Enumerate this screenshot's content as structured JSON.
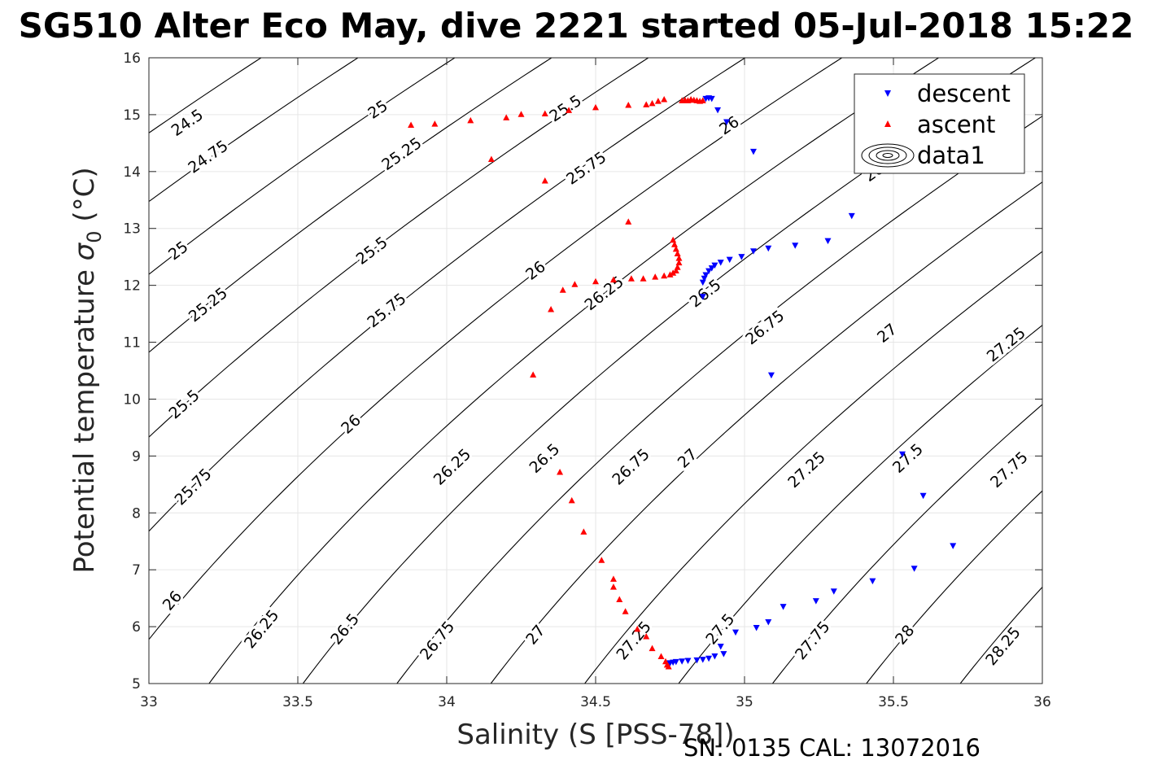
{
  "chart_data": {
    "type": "scatter",
    "title": "SG510 Alter Eco May, dive 2221 started 05-Jul-2018 15:22",
    "xlabel": "Salinity (S [PSS-78])",
    "ylabel_main": "Potential temperature ",
    "ylabel_sigma": "σ",
    "ylabel_sub": "0",
    "ylabel_unit": " (°C)",
    "footer": "SN: 0135  CAL: 13072016",
    "xlim": [
      33,
      36
    ],
    "ylim": [
      5,
      16
    ],
    "xticks": [
      "33",
      "33.5",
      "34",
      "34.5",
      "35",
      "35.5",
      "36"
    ],
    "yticks": [
      "5",
      "6",
      "7",
      "8",
      "9",
      "10",
      "11",
      "12",
      "13",
      "14",
      "15",
      "16"
    ],
    "grid": true,
    "legend": {
      "placement": "top-right",
      "entries": [
        "descent",
        "ascent",
        "data1"
      ]
    },
    "series": [
      {
        "name": "descent",
        "marker": "triangle-down",
        "color": "#0000ff",
        "points": [
          [
            34.87,
            15.28
          ],
          [
            34.88,
            15.29
          ],
          [
            34.89,
            15.28
          ],
          [
            34.91,
            15.08
          ],
          [
            34.94,
            14.87
          ],
          [
            35.03,
            14.35
          ],
          [
            34.86,
            11.8
          ],
          [
            34.86,
            12.05
          ],
          [
            34.865,
            12.12
          ],
          [
            34.87,
            12.18
          ],
          [
            34.88,
            12.25
          ],
          [
            34.89,
            12.3
          ],
          [
            34.9,
            12.35
          ],
          [
            34.92,
            12.4
          ],
          [
            34.95,
            12.45
          ],
          [
            34.99,
            12.5
          ],
          [
            35.03,
            12.6
          ],
          [
            35.08,
            12.65
          ],
          [
            35.17,
            12.7
          ],
          [
            35.28,
            12.78
          ],
          [
            35.36,
            13.22
          ],
          [
            35.09,
            10.42
          ],
          [
            35.53,
            9.03
          ],
          [
            35.6,
            8.3
          ],
          [
            35.7,
            7.42
          ],
          [
            35.57,
            7.02
          ],
          [
            35.43,
            6.8
          ],
          [
            35.3,
            6.62
          ],
          [
            35.24,
            6.45
          ],
          [
            35.13,
            6.35
          ],
          [
            35.08,
            6.08
          ],
          [
            35.04,
            5.98
          ],
          [
            34.97,
            5.9
          ],
          [
            34.92,
            5.65
          ],
          [
            34.93,
            5.52
          ],
          [
            34.9,
            5.48
          ],
          [
            34.88,
            5.44
          ],
          [
            34.86,
            5.42
          ],
          [
            34.84,
            5.41
          ],
          [
            34.81,
            5.4
          ],
          [
            34.79,
            5.39
          ],
          [
            34.77,
            5.38
          ],
          [
            34.76,
            5.37
          ],
          [
            34.75,
            5.36
          ],
          [
            34.745,
            5.35
          ]
        ]
      },
      {
        "name": "ascent",
        "marker": "triangle-up",
        "color": "#ff0000",
        "points": [
          [
            33.88,
            14.82
          ],
          [
            33.96,
            14.84
          ],
          [
            34.08,
            14.9
          ],
          [
            34.2,
            14.95
          ],
          [
            34.25,
            15.01
          ],
          [
            34.33,
            15.02
          ],
          [
            34.41,
            15.08
          ],
          [
            34.5,
            15.13
          ],
          [
            34.61,
            15.17
          ],
          [
            34.67,
            15.18
          ],
          [
            34.69,
            15.2
          ],
          [
            34.71,
            15.24
          ],
          [
            34.73,
            15.27
          ],
          [
            34.79,
            15.25
          ],
          [
            34.8,
            15.26
          ],
          [
            34.81,
            15.25
          ],
          [
            34.82,
            15.27
          ],
          [
            34.83,
            15.26
          ],
          [
            34.84,
            15.25
          ],
          [
            34.85,
            15.24
          ],
          [
            34.86,
            15.25
          ],
          [
            34.15,
            14.22
          ],
          [
            34.33,
            13.84
          ],
          [
            34.61,
            13.12
          ],
          [
            34.29,
            10.43
          ],
          [
            34.35,
            11.58
          ],
          [
            34.39,
            11.92
          ],
          [
            34.43,
            12.02
          ],
          [
            34.5,
            12.07
          ],
          [
            34.56,
            12.1
          ],
          [
            34.62,
            12.12
          ],
          [
            34.66,
            12.12
          ],
          [
            34.7,
            12.15
          ],
          [
            34.73,
            12.17
          ],
          [
            34.75,
            12.19
          ],
          [
            34.76,
            12.22
          ],
          [
            34.77,
            12.26
          ],
          [
            34.775,
            12.32
          ],
          [
            34.78,
            12.4
          ],
          [
            34.78,
            12.48
          ],
          [
            34.775,
            12.56
          ],
          [
            34.77,
            12.64
          ],
          [
            34.765,
            12.72
          ],
          [
            34.76,
            12.8
          ],
          [
            34.38,
            8.72
          ],
          [
            34.42,
            8.22
          ],
          [
            34.46,
            7.67
          ],
          [
            34.52,
            7.17
          ],
          [
            34.56,
            6.84
          ],
          [
            34.56,
            6.7
          ],
          [
            34.58,
            6.48
          ],
          [
            34.6,
            6.27
          ],
          [
            34.64,
            5.96
          ],
          [
            34.67,
            5.83
          ],
          [
            34.69,
            5.62
          ],
          [
            34.72,
            5.48
          ],
          [
            34.735,
            5.39
          ],
          [
            34.74,
            5.33
          ],
          [
            34.745,
            5.3
          ]
        ]
      }
    ],
    "contours": {
      "name": "data1",
      "quantity": "sigma0",
      "levels": [
        24.5,
        24.75,
        25,
        25.25,
        25.5,
        25.75,
        26,
        26.25,
        26.5,
        26.75,
        27,
        27.25,
        27.5,
        27.75,
        28,
        28.25
      ],
      "labels": [
        {
          "text": "24.5",
          "s": 33.13,
          "t": 14.85
        },
        {
          "text": "25",
          "s": 33.77,
          "t": 15.08
        },
        {
          "text": "25.5",
          "s": 34.4,
          "t": 15.1
        },
        {
          "text": "26",
          "s": 34.95,
          "t": 14.8
        },
        {
          "text": "26.25",
          "s": 35.47,
          "t": 14.1
        },
        {
          "text": "24.75",
          "s": 33.2,
          "t": 14.25
        },
        {
          "text": "25.25",
          "s": 33.85,
          "t": 14.3
        },
        {
          "text": "25.75",
          "s": 34.47,
          "t": 14.05
        },
        {
          "text": "25",
          "s": 33.1,
          "t": 12.6
        },
        {
          "text": "25.5",
          "s": 33.75,
          "t": 12.6
        },
        {
          "text": "26",
          "s": 34.3,
          "t": 12.25
        },
        {
          "text": "26.5",
          "s": 34.87,
          "t": 11.85
        },
        {
          "text": "25.25",
          "s": 33.2,
          "t": 11.65
        },
        {
          "text": "25.75",
          "s": 33.8,
          "t": 11.55
        },
        {
          "text": "26.25",
          "s": 34.53,
          "t": 11.85
        },
        {
          "text": "26.75",
          "s": 35.07,
          "t": 11.25
        },
        {
          "text": "27",
          "s": 35.48,
          "t": 11.15
        },
        {
          "text": "27.25",
          "s": 35.88,
          "t": 10.95
        },
        {
          "text": "25.5",
          "s": 33.12,
          "t": 9.9
        },
        {
          "text": "26",
          "s": 33.68,
          "t": 9.55
        },
        {
          "text": "26.25",
          "s": 34.02,
          "t": 8.8
        },
        {
          "text": "26.5",
          "s": 34.33,
          "t": 8.95
        },
        {
          "text": "26.75",
          "s": 34.62,
          "t": 8.8
        },
        {
          "text": "27",
          "s": 34.81,
          "t": 8.95
        },
        {
          "text": "27.25",
          "s": 35.21,
          "t": 8.75
        },
        {
          "text": "27.5",
          "s": 35.55,
          "t": 8.95
        },
        {
          "text": "27.75",
          "s": 35.89,
          "t": 8.75
        },
        {
          "text": "25.75",
          "s": 33.15,
          "t": 8.45
        },
        {
          "text": "26",
          "s": 33.08,
          "t": 6.45
        },
        {
          "text": "26.25",
          "s": 33.38,
          "t": 5.95
        },
        {
          "text": "26.5",
          "s": 33.66,
          "t": 5.95
        },
        {
          "text": "26.75",
          "s": 33.97,
          "t": 5.75
        },
        {
          "text": "27",
          "s": 34.3,
          "t": 5.85
        },
        {
          "text": "27.25",
          "s": 34.63,
          "t": 5.75
        },
        {
          "text": "27.5",
          "s": 34.92,
          "t": 5.95
        },
        {
          "text": "27.75",
          "s": 35.23,
          "t": 5.75
        },
        {
          "text": "28",
          "s": 35.54,
          "t": 5.85
        },
        {
          "text": "28.25",
          "s": 35.87,
          "t": 5.65
        }
      ]
    }
  }
}
